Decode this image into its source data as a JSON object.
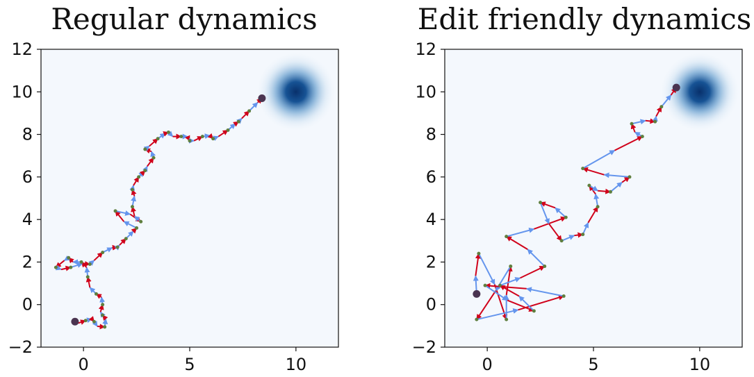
{
  "chart_data": [
    {
      "type": "scatter",
      "title": "Regular dynamics",
      "xlabel": "",
      "ylabel": "",
      "xlim": [
        -2,
        12
      ],
      "ylim": [
        -2,
        12
      ],
      "xticks": [
        0,
        5,
        10
      ],
      "yticks": [
        -2,
        0,
        2,
        4,
        6,
        8,
        10,
        12
      ],
      "xtick_labels": [
        "0",
        "5",
        "10"
      ],
      "ytick_labels": [
        "−2",
        "0",
        "2",
        "4",
        "6",
        "8",
        "10",
        "12"
      ],
      "grid": false,
      "target_center": [
        10,
        10
      ],
      "start_point": [
        -0.4,
        -0.8
      ],
      "end_point": [
        8.4,
        9.7
      ],
      "colors": {
        "background": "#f4f8fd",
        "target": "#08306b",
        "blue_arrow": "#6495ed",
        "red_arrow": "#d0021b",
        "point": "#5f7f3f",
        "endpoint": "#4a3450"
      },
      "trajectory": [
        [
          -0.4,
          -0.8
        ],
        [
          0.1,
          -0.75
        ],
        [
          0.5,
          -0.8
        ],
        [
          1.0,
          -1.05
        ],
        [
          0.9,
          -0.5
        ],
        [
          0.9,
          0.0
        ],
        [
          0.6,
          0.5
        ],
        [
          0.2,
          1.3
        ],
        [
          -0.1,
          2.0
        ],
        [
          -0.7,
          2.2
        ],
        [
          -1.3,
          1.75
        ],
        [
          -0.6,
          1.75
        ],
        [
          0.3,
          1.9
        ],
        [
          0.9,
          2.45
        ],
        [
          1.6,
          2.7
        ],
        [
          2.0,
          3.1
        ],
        [
          2.5,
          3.6
        ],
        [
          1.5,
          4.4
        ],
        [
          2.7,
          3.9
        ],
        [
          2.3,
          4.6
        ],
        [
          2.3,
          5.4
        ],
        [
          2.6,
          6.0
        ],
        [
          2.9,
          6.3
        ],
        [
          3.3,
          6.9
        ],
        [
          2.9,
          7.3
        ],
        [
          3.5,
          7.8
        ],
        [
          4.0,
          8.1
        ],
        [
          4.6,
          7.9
        ],
        [
          5.0,
          7.7
        ],
        [
          5.6,
          7.9
        ],
        [
          6.1,
          7.8
        ],
        [
          6.8,
          8.2
        ],
        [
          7.3,
          8.6
        ],
        [
          7.8,
          9.1
        ],
        [
          8.4,
          9.7
        ]
      ]
    },
    {
      "type": "scatter",
      "title": "Edit friendly dynamics",
      "xlabel": "",
      "ylabel": "",
      "xlim": [
        -2,
        12
      ],
      "ylim": [
        -2,
        12
      ],
      "xticks": [
        0,
        5,
        10
      ],
      "yticks": [
        -2,
        0,
        2,
        4,
        6,
        8,
        10,
        12
      ],
      "xtick_labels": [
        "0",
        "5",
        "10"
      ],
      "ytick_labels": [
        "−2",
        "0",
        "2",
        "4",
        "6",
        "8",
        "10",
        "12"
      ],
      "grid": false,
      "target_center": [
        10,
        10
      ],
      "start_point": [
        -0.5,
        0.5
      ],
      "end_point": [
        8.9,
        10.2
      ],
      "colors": {
        "background": "#f4f8fd",
        "target": "#08306b",
        "blue_arrow": "#6495ed",
        "red_arrow": "#d0021b",
        "point": "#5f7f3f",
        "endpoint": "#4a3450"
      },
      "trajectory": [
        [
          -0.5,
          0.5
        ],
        [
          -0.4,
          2.4
        ],
        [
          0.9,
          -0.7
        ],
        [
          1.1,
          1.8
        ],
        [
          -0.5,
          -0.7
        ],
        [
          3.6,
          0.4
        ],
        [
          -0.1,
          0.9
        ],
        [
          2.2,
          -0.3
        ],
        [
          0.6,
          0.9
        ],
        [
          2.7,
          1.8
        ],
        [
          0.9,
          3.2
        ],
        [
          3.7,
          4.1
        ],
        [
          2.5,
          4.8
        ],
        [
          3.5,
          3.0
        ],
        [
          4.5,
          3.3
        ],
        [
          5.2,
          4.6
        ],
        [
          4.8,
          5.6
        ],
        [
          5.8,
          5.3
        ],
        [
          6.7,
          6.0
        ],
        [
          4.5,
          6.4
        ],
        [
          7.3,
          7.9
        ],
        [
          6.8,
          8.5
        ],
        [
          7.9,
          8.6
        ],
        [
          8.2,
          9.3
        ],
        [
          8.9,
          10.2
        ]
      ]
    }
  ]
}
